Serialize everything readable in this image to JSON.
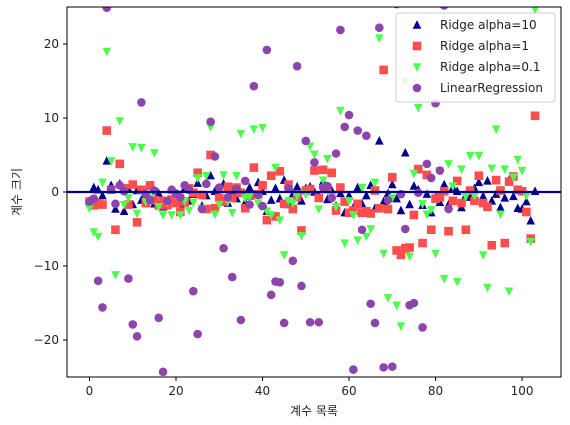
{
  "chart_data": {
    "type": "scatter",
    "title": "",
    "xlabel": "계수 목록",
    "ylabel": "계수 크기",
    "xlim": [
      -5.2,
      109
    ],
    "ylim": [
      -25,
      25
    ],
    "xticks": [
      0,
      20,
      40,
      60,
      80,
      100
    ],
    "yticks": [
      -20,
      -10,
      0,
      10,
      20
    ],
    "hline": {
      "y": 0,
      "color": "#00008b"
    },
    "legend_position": "top-right",
    "series": [
      {
        "name": "Ridge alpha=10",
        "marker": "triangle-up",
        "color": "#00008b",
        "values": [
          -1.2,
          0.6,
          0.3,
          -0.5,
          4.2,
          0.9,
          -2.3,
          1.1,
          -2.6,
          0.4,
          -1.7,
          0.2,
          -1.1,
          -0.3,
          0.8,
          -1.6,
          -0.2,
          -2.0,
          -1.3,
          0.3,
          -0.8,
          -1.6,
          0.5,
          -1.2,
          -0.3,
          1.2,
          -1.9,
          -0.5,
          2.2,
          0.1,
          -0.6,
          1.1,
          -1.5,
          0.2,
          -0.9,
          -0.2,
          -1.4,
          0.6,
          -0.4,
          1.3,
          0.1,
          -2.6,
          -1.1,
          0.5,
          -0.9,
          1.6,
          -1.7,
          -0.3,
          0.7,
          -1.2,
          0.5,
          0.7,
          0.0,
          -0.5,
          1.4,
          -1.0,
          0.2,
          -1.9,
          -0.2,
          -2.8,
          -0.5,
          -2.1,
          0.6,
          -1.6,
          -0.5,
          0.9,
          -2.2,
          6.9,
          -1.3,
          -0.2,
          1.0,
          -0.9,
          -2.5,
          5.3,
          -1.7,
          0.8,
          0.3,
          -1.8,
          -0.3,
          -2.8,
          -0.7,
          -1.4,
          1.0,
          -1.7,
          0.6,
          0.1,
          -2.1,
          -0.4,
          -0.7,
          0.5,
          1.3,
          -0.6,
          1.5,
          -1.2,
          -0.3,
          -2.1,
          -0.8,
          1.6,
          -0.6,
          -2.2,
          -2.3,
          -1.3,
          -3.9,
          0.1
        ]
      },
      {
        "name": "Ridge alpha=1",
        "marker": "square",
        "color": "#ff4c4c",
        "values": [
          -1.3,
          -1.8,
          -1.5,
          -1.7,
          8.3,
          0.3,
          -5.1,
          3.8,
          0.5,
          -1.7,
          1.0,
          -4.1,
          0.3,
          -1.5,
          0.9,
          -1.1,
          -1.8,
          -1.2,
          -1.8,
          -1.0,
          -1.5,
          -2.7,
          -1.4,
          0.5,
          -0.1,
          2.6,
          -0.4,
          -2.3,
          5.0,
          -2.2,
          -0.8,
          -1.3,
          0.7,
          -0.8,
          0.6,
          -0.1,
          -2.2,
          -0.5,
          3.3,
          -0.3,
          0.9,
          -3.8,
          2.2,
          -3.3,
          2.8,
          -1.6,
          1.0,
          -2.3,
          -0.7,
          -5.2,
          0.2,
          0.4,
          2.9,
          -0.8,
          3.0,
          0.4,
          2.6,
          -2.5,
          0.6,
          -1.3,
          -2.8,
          -2.5,
          -1.6,
          -2.8,
          -2.6,
          -2.9,
          0.2,
          -2.2,
          16.5,
          -2.3,
          2.0,
          -7.9,
          -8.5,
          -7.6,
          -7.5,
          -3.1,
          3.1,
          -6.9,
          2.3,
          -5.1,
          -0.9,
          -0.7,
          0.1,
          -5.3,
          -1.2,
          1.5,
          -1.5,
          -5.1,
          0.2,
          -1.2,
          2.2,
          -1.5,
          -2.0,
          -7.2,
          1.6,
          0.2,
          -6.9,
          1.4,
          2.1,
          0.3,
          0.1,
          -2.7,
          -6.3,
          10.3
        ]
      },
      {
        "name": "Ridge alpha=0.1",
        "marker": "triangle-down",
        "color": "#4cff4c",
        "values": [
          -2.2,
          -5.4,
          -6.0,
          1.3,
          19.0,
          4.2,
          -11.2,
          9.6,
          -1.7,
          -0.8,
          6.1,
          -2.9,
          6.0,
          -1.3,
          -0.8,
          5.3,
          -2.0,
          -3.1,
          -1.4,
          -3.1,
          -0.3,
          -3.1,
          -1.2,
          -2.5,
          -1.4,
          1.9,
          -2.2,
          2.2,
          8.8,
          -3.0,
          -1.7,
          2.3,
          -1.3,
          -2.8,
          2.2,
          7.9,
          -0.8,
          -0.6,
          8.5,
          -1.5,
          8.7,
          -2.6,
          -3.1,
          3.3,
          -3.8,
          -8.5,
          -1.2,
          -1.5,
          -0.5,
          -5.9,
          -0.3,
          6.2,
          5.1,
          -2.3,
          1.6,
          4.5,
          -0.6,
          -2.0,
          11.0,
          -6.9,
          -1.2,
          -3.1,
          -6.5,
          0.6,
          -6.0,
          -5.0,
          1.3,
          20.8,
          -8.3,
          -14.3,
          -0.8,
          -15.3,
          -18.1,
          14.9,
          -8.7,
          2.5,
          11.4,
          -1.6,
          -3.0,
          -2.4,
          -8.3,
          2.9,
          -11.7,
          3.8,
          0.8,
          -12.1,
          3.1,
          -0.6,
          4.9,
          -0.5,
          4.9,
          -8.5,
          -12.9,
          3.2,
          8.5,
          -3.0,
          3.1,
          -13.4,
          2.0,
          4.4,
          2.9,
          -0.5,
          -6.7,
          24.7
        ]
      },
      {
        "name": "LinearRegression",
        "marker": "circle",
        "color": "#8e44ad",
        "values": [
          -1.3,
          -0.9,
          -12.0,
          -15.6,
          24.9,
          0.4,
          -1.6,
          0.9,
          0.1,
          -11.7,
          -17.9,
          -19.5,
          12.1,
          -0.3,
          -1.1,
          0.2,
          -17.0,
          -24.3,
          -1.2,
          0.3,
          -0.2,
          -0.7,
          0.9,
          0.3,
          -13.4,
          -19.2,
          -2.3,
          1.1,
          9.5,
          4.8,
          0.6,
          -7.6,
          -0.7,
          -11.5,
          0.4,
          -17.3,
          1.5,
          -1.7,
          14.3,
          -0.4,
          -1.9,
          19.2,
          -13.9,
          -12.1,
          -12.2,
          -17.7,
          0.5,
          -9.3,
          17.0,
          -12.7,
          6.9,
          -17.6,
          4.0,
          -17.6,
          0.6,
          0.8,
          -0.8,
          5.2,
          21.9,
          8.8,
          10.4,
          -24.0,
          8.3,
          -5.1,
          7.6,
          -15.1,
          -17.7,
          22.2,
          -23.7,
          -1.1,
          -23.6,
          25.4,
          -0.3,
          -5.0,
          -15.3,
          -15.0,
          -0.1,
          -18.3,
          3.8,
          1.9,
          12.0,
          2.9,
          25.2,
          -2.3
        ]
      }
    ]
  }
}
